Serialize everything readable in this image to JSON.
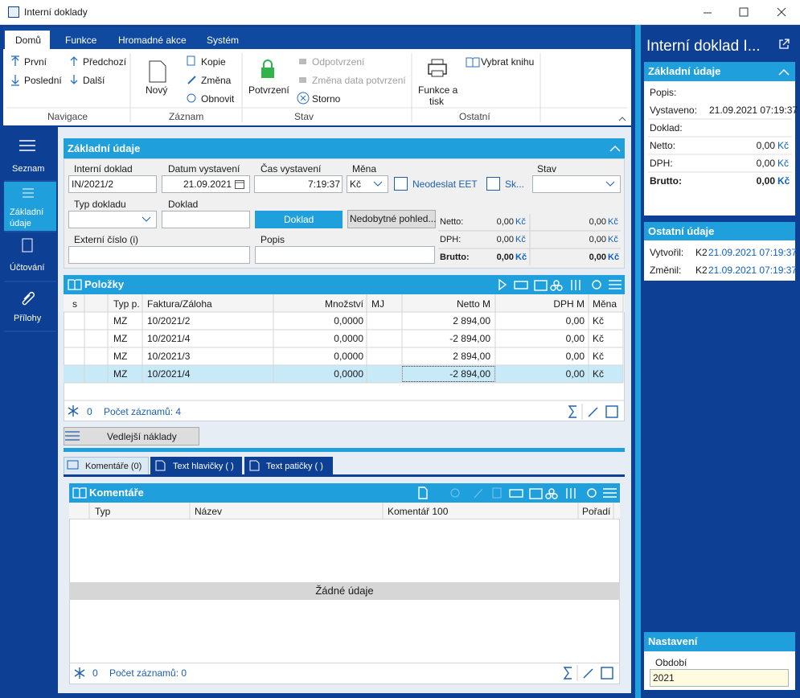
{
  "window_title": "Interní doklady",
  "ribbon": {
    "tabs": [
      "Domů",
      "Funkce",
      "Hromadné akce",
      "Systém"
    ],
    "groups": [
      {
        "label": "Navigace",
        "buttons": [
          "První",
          "Poslední",
          "Předchozí",
          "Další"
        ]
      },
      {
        "label": "Záznam",
        "buttons": [
          "Nový",
          "Kopie",
          "Změna",
          "Obnovit"
        ]
      },
      {
        "label": "Stav",
        "buttons": [
          "Potvrzení",
          "Odpotvrzení",
          "Změna data potvrzení",
          "Storno"
        ]
      },
      {
        "label": "Ostatní",
        "buttons": [
          "Funkce a",
          "tisk",
          "Vybrat knihu"
        ]
      }
    ]
  },
  "sidebar": [
    "Seznam",
    "Základní",
    "údaje",
    "Účtování",
    "Přílohy"
  ],
  "basic": {
    "title": "Základní údaje",
    "labels": [
      "Interní doklad",
      "Datum vystavení",
      "Čas vystavení",
      "Měna",
      "Neodeslat EET",
      "Sk...",
      "Stav",
      "Typ dokladu",
      "Doklad",
      "Externí číslo (i)",
      "Popis"
    ],
    "values": {
      "doc": "IN/2021/2",
      "date": "21.09.2021",
      "time": "7:19:37",
      "currency": "Kč"
    },
    "buttons": [
      "Doklad",
      "Nedobytné pohled..."
    ],
    "totals": {
      "labels": [
        "Netto:",
        "DPH:",
        "Brutto:"
      ],
      "col1": [
        "0,00",
        "0,00",
        "0,00"
      ],
      "col2": [
        "0,00",
        "0,00",
        "0,00"
      ],
      "currency": "Kč"
    }
  },
  "items": {
    "title": "Položky",
    "columns": [
      "s",
      "Typ p.",
      "Faktura/Záloha",
      "Množství",
      "MJ",
      "Netto M",
      "DPH M",
      "Měna"
    ],
    "rows": [
      [
        "MZ",
        "10/2021/2",
        "0,0000",
        "2 894,00",
        "0,00",
        "Kč"
      ],
      [
        "MZ",
        "10/2021/4",
        "0,0000",
        "-2 894,00",
        "0,00",
        "Kč"
      ],
      [
        "MZ",
        "10/2021/3",
        "0,0000",
        "2 894,00",
        "0,00",
        "Kč"
      ],
      [
        "MZ",
        "10/2021/4",
        "0,0000",
        "-2 894,00",
        "0,00",
        "Kč"
      ]
    ],
    "footer_count": "0",
    "footer_text": "Počet záznamů: 4"
  },
  "side_costs": "Vedlejší náklady",
  "tabs": [
    "Komentáře (0)",
    "Text hlavičky ( )",
    "Text patičky ( )"
  ],
  "comments": {
    "title": "Komentáře",
    "columns": [
      "Typ",
      "Název",
      "Komentář 100",
      "Pořadí"
    ],
    "empty": "Žádné údaje",
    "footer_count": "0",
    "footer_text": "Počet záznamů: 0"
  },
  "right_panel": {
    "title": "Interní doklad I...",
    "basic": {
      "title": "Základní údaje",
      "labels": [
        "Popis:",
        "Vystaveno:",
        "Doklad:",
        "Netto:",
        "DPH:",
        "Brutto:"
      ],
      "issued": "21.09.2021 07:19:37",
      "amounts": [
        "0,00",
        "0,00",
        "0,00"
      ],
      "currency": "Kč"
    },
    "other": {
      "title": "Ostatní údaje",
      "labels": [
        "Vytvořil:",
        "Změnil:"
      ],
      "users": [
        "K2",
        "K2"
      ],
      "dates": [
        "21.09.2021 07:19:37",
        "21.09.2021 07:19:37"
      ]
    },
    "settings": {
      "title": "Nastavení",
      "label": "Období",
      "value": "2021"
    }
  }
}
